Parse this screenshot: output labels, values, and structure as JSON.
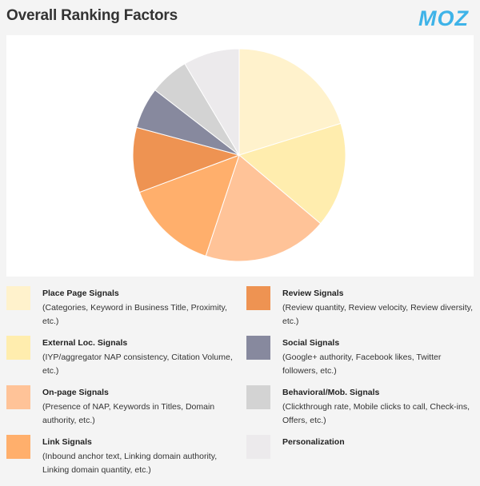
{
  "header": {
    "title": "Overall Ranking Factors",
    "logo_text": "MOZ",
    "logo_color": "#3eb3e8"
  },
  "chart_data": {
    "type": "pie",
    "series": [
      {
        "label": "Place Page Signals",
        "value": 19.6,
        "color": "#fff2cc"
      },
      {
        "label": "External Loc. Signals",
        "value": 15.5,
        "color": "#ffedae"
      },
      {
        "label": "On-page Signals",
        "value": 18.4,
        "color": "#ffc398"
      },
      {
        "label": "Link Signals",
        "value": 13.8,
        "color": "#ffaf6c"
      },
      {
        "label": "Review Signals",
        "value": 9.6,
        "color": "#ee9352"
      },
      {
        "label": "Social Signals",
        "value": 6.1,
        "color": "#87899e"
      },
      {
        "label": "Behavioral/Mob. Signals",
        "value": 5.8,
        "color": "#d3d3d3"
      },
      {
        "label": "Personalization",
        "value": 8.3,
        "color": "#eceaec"
      }
    ]
  },
  "legend": {
    "left": [
      {
        "label": "Place Page Signals",
        "desc": "(Categories, Keyword in Business Title, Proximity, etc.)",
        "color": "#fff2cc"
      },
      {
        "label": "External Loc. Signals",
        "desc": "(IYP/aggregator NAP consistency, Citation Volume, etc.)",
        "color": "#ffedae"
      },
      {
        "label": "On-page Signals",
        "desc": "(Presence of NAP, Keywords in Titles, Domain authority, etc.)",
        "color": "#ffc398"
      },
      {
        "label": "Link Signals",
        "desc": "(Inbound anchor text, Linking domain authority, Linking domain quantity, etc.)",
        "color": "#ffaf6c"
      }
    ],
    "right": [
      {
        "label": "Review Signals",
        "desc": "(Review quantity, Review velocity, Review diversity, etc.)",
        "color": "#ee9352"
      },
      {
        "label": "Social Signals",
        "desc": "(Google+ authority, Facebook likes, Twitter followers, etc.)",
        "color": "#87899e"
      },
      {
        "label": "Behavioral/Mob. Signals",
        "desc": "(Clickthrough rate, Mobile clicks to call, Check-ins, Offers, etc.)",
        "color": "#d3d3d3"
      },
      {
        "label": "Personalization",
        "desc": "",
        "color": "#eceaec"
      }
    ]
  }
}
